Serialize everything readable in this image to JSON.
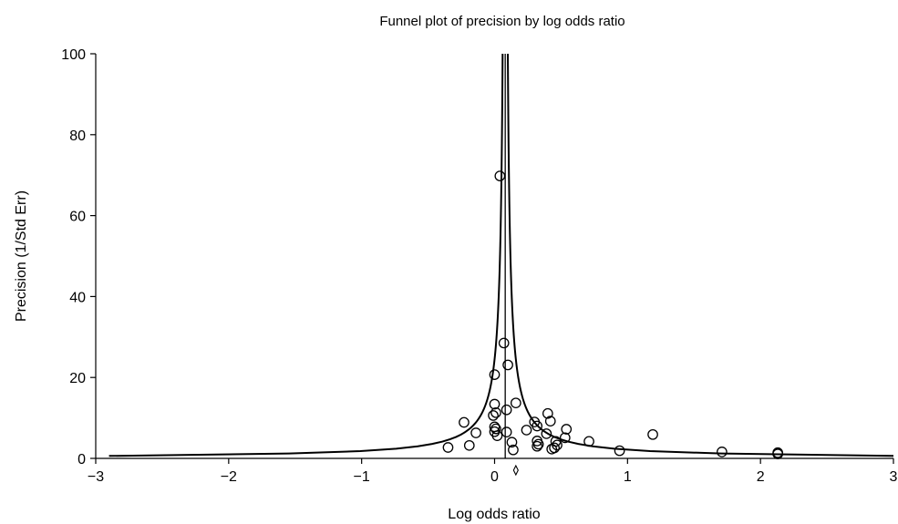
{
  "chart_data": {
    "type": "scatter",
    "title": "Funnel plot of precision by log odds ratio",
    "xlabel": "Log odds ratio",
    "ylabel": "Precision (1/Std Err)",
    "xlim": [
      -3,
      3
    ],
    "ylim": [
      0,
      100
    ],
    "x_ticks": [
      -3,
      -2,
      -1,
      0,
      1,
      2,
      3
    ],
    "x_tick_labels": [
      "−3",
      "−2",
      "−1",
      "0",
      "1",
      "2",
      "3"
    ],
    "y_ticks": [
      0,
      20,
      40,
      60,
      80,
      100
    ],
    "y_tick_labels": [
      "0",
      "20",
      "40",
      "60",
      "80",
      "100"
    ],
    "grid": false,
    "legend": "none",
    "pooled_estimate": 0.08,
    "summary_diamond": 0.16,
    "funnel_z": 1.96,
    "points": [
      {
        "x": 0.04,
        "y": 69.8
      },
      {
        "x": 0.07,
        "y": 28.5
      },
      {
        "x": 0.1,
        "y": 23.1
      },
      {
        "x": 0.0,
        "y": 20.7
      },
      {
        "x": 0.16,
        "y": 13.7
      },
      {
        "x": 0.0,
        "y": 13.4
      },
      {
        "x": 0.09,
        "y": 12.0
      },
      {
        "x": 0.01,
        "y": 11.3
      },
      {
        "x": -0.01,
        "y": 10.6
      },
      {
        "x": 0.4,
        "y": 11.1
      },
      {
        "x": 0.42,
        "y": 9.2
      },
      {
        "x": 0.3,
        "y": 9.0
      },
      {
        "x": -0.23,
        "y": 8.9
      },
      {
        "x": 0.32,
        "y": 8.0
      },
      {
        "x": 0.0,
        "y": 7.8
      },
      {
        "x": 0.01,
        "y": 7.3
      },
      {
        "x": 0.54,
        "y": 7.2
      },
      {
        "x": 0.24,
        "y": 7.0
      },
      {
        "x": 0.0,
        "y": 6.6
      },
      {
        "x": 0.09,
        "y": 6.5
      },
      {
        "x": -0.14,
        "y": 6.3
      },
      {
        "x": 0.39,
        "y": 6.1
      },
      {
        "x": 1.19,
        "y": 5.9
      },
      {
        "x": 0.02,
        "y": 5.6
      },
      {
        "x": 0.53,
        "y": 5.1
      },
      {
        "x": 0.32,
        "y": 4.3
      },
      {
        "x": 0.46,
        "y": 4.2
      },
      {
        "x": 0.71,
        "y": 4.2
      },
      {
        "x": 0.13,
        "y": 4.0
      },
      {
        "x": 0.33,
        "y": 3.5
      },
      {
        "x": 0.47,
        "y": 3.3
      },
      {
        "x": -0.19,
        "y": 3.2
      },
      {
        "x": 0.32,
        "y": 3.0
      },
      {
        "x": -0.35,
        "y": 2.7
      },
      {
        "x": 0.45,
        "y": 2.6
      },
      {
        "x": 0.43,
        "y": 2.3
      },
      {
        "x": 0.14,
        "y": 2.1
      },
      {
        "x": 0.94,
        "y": 1.9
      },
      {
        "x": 1.71,
        "y": 1.6
      },
      {
        "x": 2.13,
        "y": 1.4
      },
      {
        "x": 2.13,
        "y": 1.1
      }
    ]
  }
}
